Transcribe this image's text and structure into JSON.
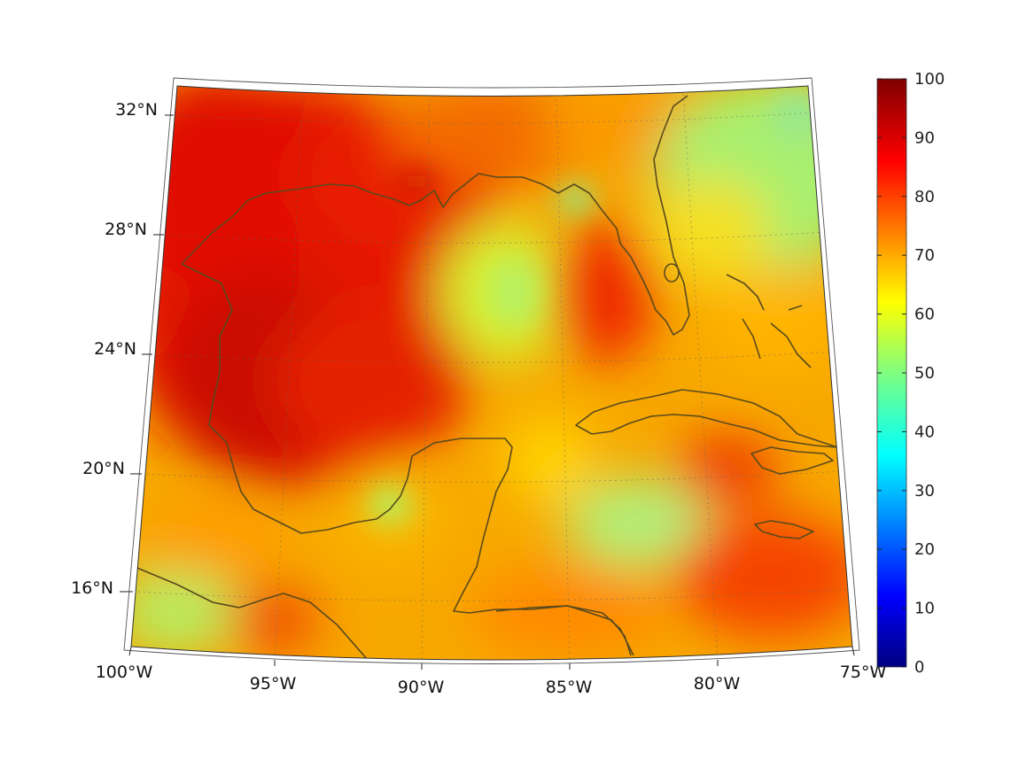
{
  "map": {
    "projection": "conic",
    "region": "Gulf of Mexico and Caribbean",
    "lon_labels": [
      "100°W",
      "95°W",
      "90°W",
      "85°W",
      "80°W",
      "75°W"
    ],
    "lat_labels": [
      "32°N",
      "28°N",
      "24°N",
      "20°N",
      "16°N"
    ],
    "coastline_color": "#5a4a1e",
    "colormap": "jet"
  },
  "colorbar": {
    "min": 0,
    "max": 100,
    "tick_labels": [
      "100",
      "90",
      "80",
      "70",
      "60",
      "50",
      "40",
      "30",
      "20",
      "10",
      "0"
    ]
  }
}
